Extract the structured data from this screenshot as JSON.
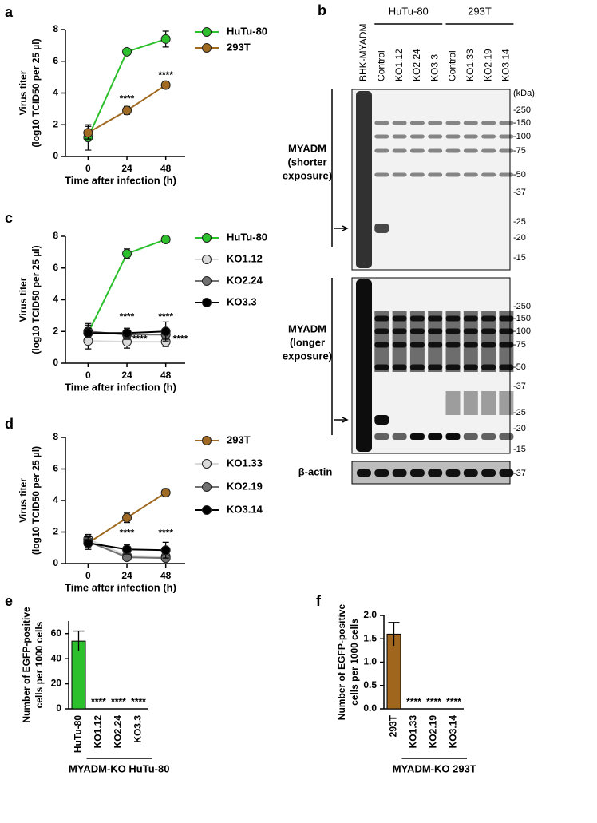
{
  "panel_labels": [
    "a",
    "b",
    "c",
    "d",
    "e",
    "f"
  ],
  "chart_data": [
    {
      "type": "line",
      "y_label": [
        "Virus titer",
        "(log10 TCID50 per 25 µl)"
      ],
      "x_label": "Time after infection (h)",
      "x": [
        0,
        24,
        48
      ],
      "xlim": [
        -14,
        60
      ],
      "xticks": [
        0,
        24,
        48
      ],
      "ylim": [
        0,
        8
      ],
      "yticks": [
        0,
        2,
        4,
        6,
        8
      ],
      "legend": "right",
      "series": [
        {
          "name": "HuTu-80",
          "color": "#2cc02c",
          "values": [
            1.2,
            6.6,
            7.4
          ],
          "errors": [
            0.8,
            0.1,
            0.5
          ]
        },
        {
          "name": "293T",
          "color": "#a06a22",
          "values": [
            1.5,
            2.9,
            4.5
          ],
          "errors": [
            0.4,
            0.25,
            0.2
          ]
        }
      ],
      "annotations": [
        {
          "text": "****",
          "x": 24,
          "y": 3.6
        },
        {
          "text": "****",
          "x": 48,
          "y": 5.1
        }
      ]
    },
    {
      "type": "line",
      "y_label": [
        "Virus titer",
        "(log10 TCID50 per 25 µl)"
      ],
      "x_label": "Time after infection (h)",
      "x": [
        0,
        24,
        48
      ],
      "xlim": [
        -14,
        60
      ],
      "xticks": [
        0,
        24,
        48
      ],
      "ylim": [
        0,
        8
      ],
      "yticks": [
        0,
        2,
        4,
        6,
        8
      ],
      "legend": "right",
      "series": [
        {
          "name": "HuTu-80",
          "color": "#2cc02c",
          "values": [
            1.9,
            6.9,
            7.8
          ],
          "errors": [
            0.6,
            0.3,
            0.1
          ]
        },
        {
          "name": "KO1.12",
          "color": "#d9d9d9",
          "values": [
            1.4,
            1.35,
            1.35
          ],
          "errors": [
            0.5,
            0.4,
            0.3
          ]
        },
        {
          "name": "KO2.24",
          "color": "#707070",
          "values": [
            2.0,
            1.8,
            1.8
          ],
          "errors": [
            0.4,
            0.3,
            0.3
          ]
        },
        {
          "name": "KO3.3",
          "color": "#000000",
          "values": [
            1.9,
            1.9,
            2.0
          ],
          "errors": [
            0.3,
            0.3,
            0.6
          ]
        }
      ],
      "annotations": [
        {
          "text": "****",
          "x": 24,
          "y": 2.9
        },
        {
          "text": "****",
          "x": 48,
          "y": 2.9
        },
        {
          "text": "****",
          "x": 32,
          "y": 1.5
        },
        {
          "text": "****",
          "x": 57,
          "y": 1.5
        }
      ]
    },
    {
      "type": "line",
      "y_label": [
        "Virus titer",
        "(log10 TCID50 per 25 µl)"
      ],
      "x_label": "Time after infection (h)",
      "x": [
        0,
        24,
        48
      ],
      "xlim": [
        -14,
        60
      ],
      "xticks": [
        0,
        24,
        48
      ],
      "ylim": [
        0,
        8
      ],
      "yticks": [
        0,
        2,
        4,
        6,
        8
      ],
      "legend": "right",
      "series": [
        {
          "name": "293T",
          "color": "#a06a22",
          "values": [
            1.3,
            2.9,
            4.5
          ],
          "errors": [
            0.3,
            0.3,
            0.25
          ]
        },
        {
          "name": "KO1.33",
          "color": "#d9d9d9",
          "values": [
            1.55,
            0.5,
            0.45
          ],
          "errors": [
            0.3,
            0.2,
            0.2
          ]
        },
        {
          "name": "KO2.19",
          "color": "#707070",
          "values": [
            1.4,
            0.4,
            0.35
          ],
          "errors": [
            0.3,
            0.2,
            0.2
          ]
        },
        {
          "name": "KO3.14",
          "color": "#000000",
          "values": [
            1.3,
            0.9,
            0.85
          ],
          "errors": [
            0.4,
            0.3,
            0.5
          ]
        }
      ],
      "annotations": [
        {
          "text": "****",
          "x": 24,
          "y": 1.9
        },
        {
          "text": "****",
          "x": 48,
          "y": 1.9
        }
      ]
    },
    {
      "type": "bar",
      "y_label": [
        "Number of EGFP-positive",
        "cells per 1000 cells"
      ],
      "group_label": "MYADM-KO HuTu-80",
      "categories": [
        "HuTu-80",
        "KO1.12",
        "KO2.24",
        "KO3.3"
      ],
      "values": [
        54,
        0,
        0,
        0
      ],
      "errors": [
        8,
        null,
        null,
        null
      ],
      "color": "#2cc02c",
      "ylim": [
        0,
        70
      ],
      "yticks": [
        0,
        20,
        40,
        60
      ],
      "annotations": [
        {
          "text": "****",
          "x": "KO1.12"
        },
        {
          "text": "****",
          "x": "KO2.24"
        },
        {
          "text": "****",
          "x": "KO3.3"
        }
      ]
    },
    {
      "type": "bar",
      "y_label": [
        "Number of EGFP-positive",
        "cells per 1000 cells"
      ],
      "group_label": "MYADM-KO 293T",
      "categories": [
        "293T",
        "KO1.33",
        "KO2.19",
        "KO3.14"
      ],
      "values": [
        1.6,
        0,
        0,
        0
      ],
      "errors": [
        0.25,
        null,
        null,
        null
      ],
      "color": "#a0661e",
      "ylim": [
        0,
        2.0
      ],
      "yticks": [
        {
          "value": 0,
          "label": "0.0"
        },
        {
          "value": 0.5,
          "label": "0.5"
        },
        {
          "value": 1,
          "label": "1.0"
        },
        {
          "value": 1.5,
          "label": "1.5"
        },
        {
          "value": 2,
          "label": "2.0"
        }
      ],
      "annotations": [
        {
          "text": "****",
          "x": "KO1.33"
        },
        {
          "text": "****",
          "x": "KO2.19"
        },
        {
          "text": "****",
          "x": "KO3.14"
        }
      ]
    }
  ],
  "blot": {
    "lanes": [
      "BHK-MYADM",
      "Control",
      "KO1.12",
      "KO2.24",
      "KO3.3",
      "Control",
      "KO1.33",
      "KO2.19",
      "KO3.14"
    ],
    "groups": [
      "HuTu-80",
      "293T"
    ],
    "unit": "(kDa)",
    "panels": [
      {
        "label": [
          "MYADM",
          "(shorter",
          "exposure)"
        ],
        "markers": [
          "-250",
          "-150",
          "-100",
          "-75",
          "-50",
          "-37",
          "-25",
          "-20",
          "-15"
        ]
      },
      {
        "label": [
          "MYADM",
          "(longer",
          "exposure)"
        ],
        "markers": [
          "-250",
          "-150",
          "-100",
          "-75",
          "-50",
          "-37",
          "-25",
          "-20",
          "-15"
        ]
      },
      {
        "label": [
          "β-actin"
        ],
        "markers": [
          "-37"
        ]
      }
    ]
  }
}
